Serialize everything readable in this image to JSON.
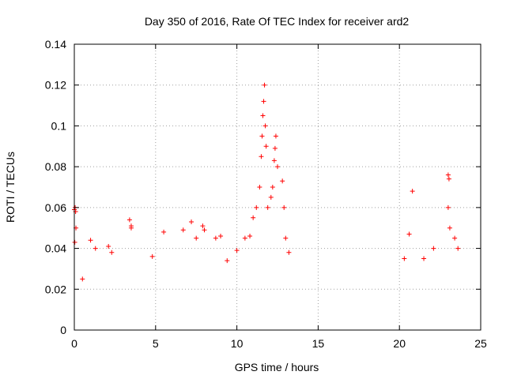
{
  "chart_data": {
    "type": "scatter",
    "title": "Day 350 of 2016, Rate Of TEC Index for receiver ard2",
    "xlabel": "GPS time / hours",
    "ylabel": "ROTI / TECUs",
    "xlim": [
      0,
      25
    ],
    "ylim": [
      0,
      0.14
    ],
    "x_ticks": [
      "0",
      "5",
      "10",
      "15",
      "20",
      "25"
    ],
    "y_ticks": [
      "0",
      "0.02",
      "0.04",
      "0.06",
      "0.08",
      "0.1",
      "0.12",
      "0.14"
    ],
    "grid": true,
    "marker": "plus",
    "color": "#ff0000",
    "series": [
      {
        "points": [
          [
            0.0,
            0.059
          ],
          [
            0.05,
            0.06
          ],
          [
            0.08,
            0.058
          ],
          [
            0.03,
            0.043
          ],
          [
            0.1,
            0.05
          ],
          [
            0.5,
            0.025
          ],
          [
            1.0,
            0.044
          ],
          [
            1.3,
            0.04
          ],
          [
            2.1,
            0.041
          ],
          [
            2.3,
            0.038
          ],
          [
            3.4,
            0.054
          ],
          [
            3.5,
            0.051
          ],
          [
            3.5,
            0.05
          ],
          [
            4.8,
            0.036
          ],
          [
            5.5,
            0.048
          ],
          [
            6.7,
            0.049
          ],
          [
            7.2,
            0.053
          ],
          [
            7.5,
            0.045
          ],
          [
            7.9,
            0.051
          ],
          [
            8.0,
            0.049
          ],
          [
            8.7,
            0.045
          ],
          [
            9.0,
            0.046
          ],
          [
            9.4,
            0.034
          ],
          [
            10.0,
            0.039
          ],
          [
            10.5,
            0.045
          ],
          [
            10.8,
            0.046
          ],
          [
            11.0,
            0.055
          ],
          [
            11.2,
            0.06
          ],
          [
            11.4,
            0.07
          ],
          [
            11.5,
            0.085
          ],
          [
            11.55,
            0.095
          ],
          [
            11.6,
            0.105
          ],
          [
            11.65,
            0.112
          ],
          [
            11.7,
            0.12
          ],
          [
            11.75,
            0.1
          ],
          [
            11.8,
            0.09
          ],
          [
            11.9,
            0.06
          ],
          [
            12.1,
            0.065
          ],
          [
            12.2,
            0.07
          ],
          [
            12.3,
            0.083
          ],
          [
            12.35,
            0.089
          ],
          [
            12.4,
            0.095
          ],
          [
            12.5,
            0.08
          ],
          [
            12.8,
            0.073
          ],
          [
            12.9,
            0.06
          ],
          [
            13.0,
            0.045
          ],
          [
            13.2,
            0.038
          ],
          [
            20.3,
            0.035
          ],
          [
            20.6,
            0.047
          ],
          [
            20.8,
            0.068
          ],
          [
            21.5,
            0.035
          ],
          [
            22.1,
            0.04
          ],
          [
            23.0,
            0.076
          ],
          [
            23.05,
            0.074
          ],
          [
            23.0,
            0.06
          ],
          [
            23.1,
            0.05
          ],
          [
            23.4,
            0.045
          ],
          [
            23.6,
            0.04
          ]
        ]
      }
    ]
  }
}
